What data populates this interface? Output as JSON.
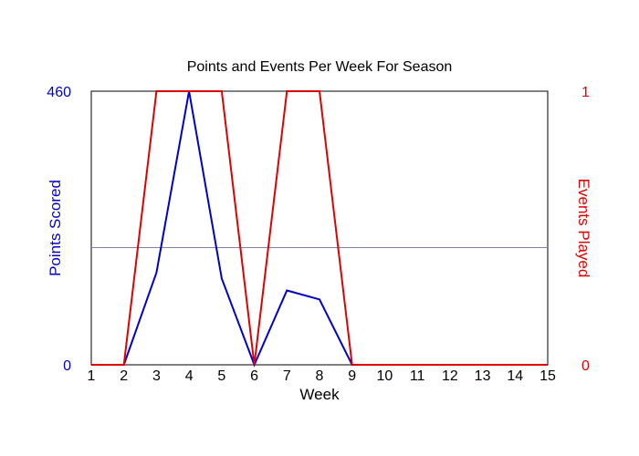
{
  "chart_data": {
    "type": "line",
    "title": "Points and Events Per Week For Season",
    "xlabel": "Week",
    "ylabel_left": "Points Scored",
    "ylabel_right": "Events Played",
    "x": [
      1,
      2,
      3,
      4,
      5,
      6,
      7,
      8,
      9,
      10,
      11,
      12,
      13,
      14,
      15
    ],
    "x_tick_labels": [
      "1",
      "2",
      "3",
      "4",
      "5",
      "6",
      "7",
      "8",
      "9",
      "10",
      "11",
      "12",
      "13",
      "14",
      "15"
    ],
    "xlim": [
      1,
      15
    ],
    "ylim_left": [
      0,
      460
    ],
    "ylim_right": [
      0,
      1
    ],
    "left_tick_labels": [
      "0",
      "460"
    ],
    "right_tick_labels": [
      "0",
      "1"
    ],
    "reference_line_left": 197,
    "series": [
      {
        "axis": "left",
        "color": "#0000cc",
        "values": [
          0,
          0,
          155,
          460,
          145,
          0,
          125,
          110,
          0,
          0,
          0,
          0,
          0,
          0,
          0
        ]
      },
      {
        "axis": "right",
        "color": "#e00000",
        "values": [
          0,
          0,
          1,
          1,
          1,
          0,
          1,
          1,
          0,
          0,
          0,
          0,
          0,
          0,
          0
        ]
      }
    ],
    "grid": false,
    "legend": "none"
  },
  "colors": {
    "left_axis": "#0000cc",
    "right_axis": "#e00000",
    "reference_line": "#8080b0",
    "frame": "#000000"
  }
}
